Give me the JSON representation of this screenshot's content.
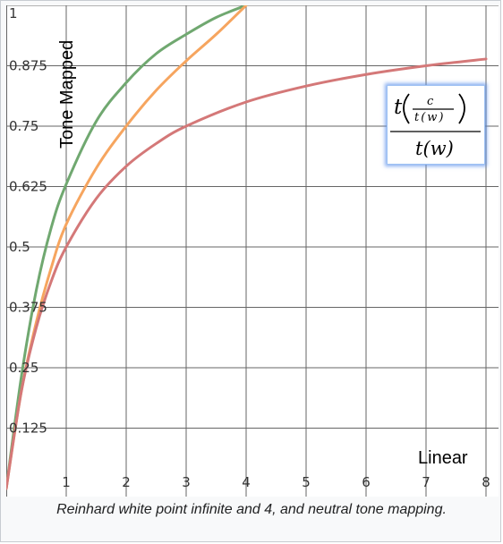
{
  "caption": "Reinhard white point infinite and 4, and neutral tone mapping.",
  "formula": {
    "numerator_func": "t",
    "inner_numerator": "c",
    "inner_denominator": "t(w)",
    "denominator": "t(w)"
  },
  "chart_data": {
    "type": "line",
    "title": "",
    "xlabel": "Linear",
    "ylabel": "Tone Mapped",
    "xlim": [
      0,
      8
    ],
    "ylim": [
      0,
      1
    ],
    "grid": true,
    "x_ticks": [
      1,
      2,
      3,
      4,
      5,
      6,
      7,
      8
    ],
    "x_tick_labels": [
      "1",
      "2",
      "3",
      "4",
      "5",
      "6",
      "7",
      "8"
    ],
    "y_ticks": [
      0.125,
      0.25,
      0.375,
      0.5,
      0.625,
      0.75,
      0.875,
      1
    ],
    "y_tick_labels": [
      "0.125",
      "0.25",
      "0.375",
      "0.5",
      "0.625",
      "0.75",
      "0.875",
      "1"
    ],
    "series": [
      {
        "color": "#70a870",
        "x": [
          0,
          0.25,
          0.5,
          0.75,
          1,
          1.5,
          2,
          2.5,
          3,
          3.5,
          4
        ],
        "values": [
          0,
          0.23,
          0.41,
          0.54,
          0.63,
          0.76,
          0.84,
          0.9,
          0.94,
          0.975,
          1
        ]
      },
      {
        "color": "#f6a55f",
        "x": [
          0,
          0.25,
          0.5,
          0.75,
          1,
          1.5,
          2,
          2.5,
          3,
          3.5,
          4
        ],
        "values": [
          0,
          0.2,
          0.344,
          0.457,
          0.547,
          0.663,
          0.75,
          0.824,
          0.885,
          0.94,
          1
        ]
      },
      {
        "color": "#d47878",
        "x": [
          0,
          0.25,
          0.5,
          0.75,
          1,
          1.5,
          2,
          2.5,
          3,
          4,
          5,
          6,
          7,
          8
        ],
        "values": [
          0,
          0.2,
          0.333,
          0.429,
          0.5,
          0.6,
          0.667,
          0.714,
          0.75,
          0.8,
          0.833,
          0.857,
          0.875,
          0.889
        ]
      }
    ]
  }
}
